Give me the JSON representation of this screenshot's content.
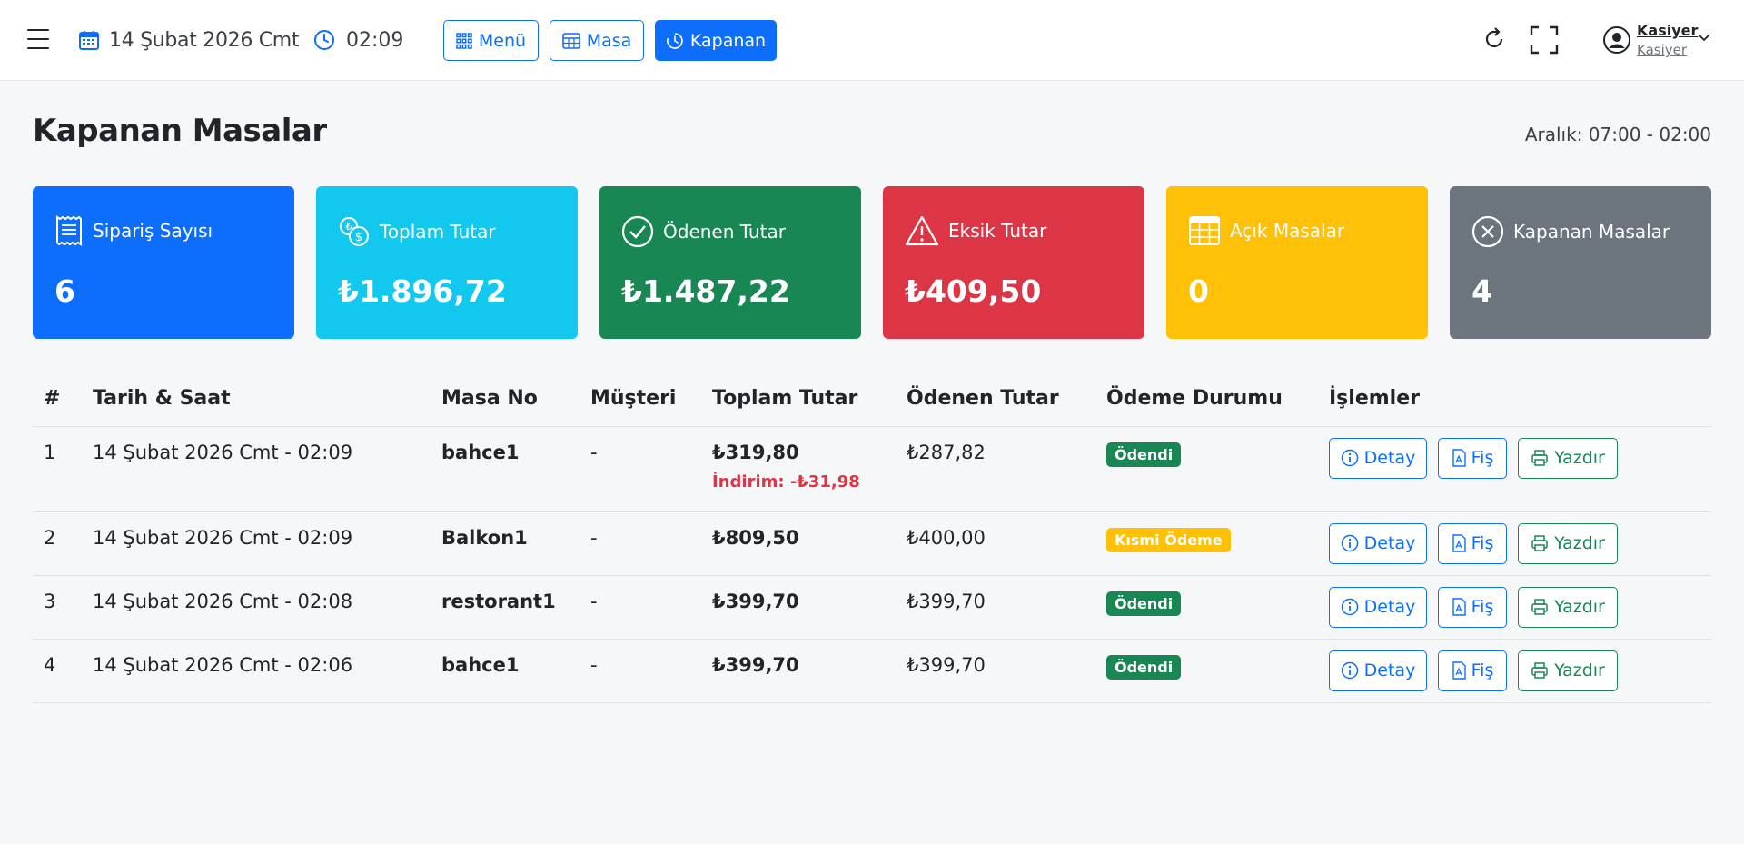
{
  "topbar": {
    "date": "14 Şubat 2026 Cmt",
    "time": "02:09",
    "nav": {
      "menu_label": "Menü",
      "masa_label": "Masa",
      "kapanan_label": "Kapanan"
    },
    "user": {
      "name": "Kasiyer",
      "role": "Kasiyer"
    }
  },
  "page": {
    "title": "Kapanan Masalar",
    "range": "Aralık: 07:00 - 02:00"
  },
  "cards": [
    {
      "label": "Sipariş Sayısı",
      "value": "6",
      "color": "#0d6efd",
      "icon": "receipt-icon"
    },
    {
      "label": "Toplam Tutar",
      "value": "₺1.896,72",
      "color": "#12c8ef",
      "icon": "coins-icon"
    },
    {
      "label": "Ödenen Tutar",
      "value": "₺1.487,22",
      "color": "#198754",
      "icon": "check-circle-icon"
    },
    {
      "label": "Eksik Tutar",
      "value": "₺409,50",
      "color": "#dc3545",
      "icon": "warning-icon"
    },
    {
      "label": "Açık Masalar",
      "value": "0",
      "color": "#ffc107",
      "icon": "table-grid-icon"
    },
    {
      "label": "Kapanan Masalar",
      "value": "4",
      "color": "#6c757d",
      "icon": "x-circle-icon"
    }
  ],
  "table": {
    "headers": [
      "#",
      "Tarih & Saat",
      "Masa No",
      "Müşteri",
      "Toplam Tutar",
      "Ödenen Tutar",
      "Ödeme Durumu",
      "İşlemler"
    ],
    "rows": [
      {
        "n": "1",
        "datetime": "14 Şubat 2026 Cmt - 02:09",
        "masa": "bahce1",
        "musteri": "-",
        "total": "₺319,80",
        "discount": "İndirim: -₺31,98",
        "paid": "₺287,82",
        "status": "Ödendi"
      },
      {
        "n": "2",
        "datetime": "14 Şubat 2026 Cmt - 02:09",
        "masa": "Balkon1",
        "musteri": "-",
        "total": "₺809,50",
        "paid": "₺400,00",
        "status": "Kısmi Ödeme"
      },
      {
        "n": "3",
        "datetime": "14 Şubat 2026 Cmt - 02:08",
        "masa": "restorant1",
        "musteri": "-",
        "total": "₺399,70",
        "paid": "₺399,70",
        "status": "Ödendi"
      },
      {
        "n": "4",
        "datetime": "14 Şubat 2026 Cmt - 02:06",
        "masa": "bahce1",
        "musteri": "-",
        "total": "₺399,70",
        "paid": "₺399,70",
        "status": "Ödendi"
      }
    ],
    "actions": {
      "detay": "Detay",
      "fis": "Fiş",
      "yazdir": "Yazdır"
    }
  },
  "colors": {
    "primary": "#0d6efd",
    "success": "#198754",
    "danger": "#dc3545",
    "warning": "#ffc107"
  }
}
